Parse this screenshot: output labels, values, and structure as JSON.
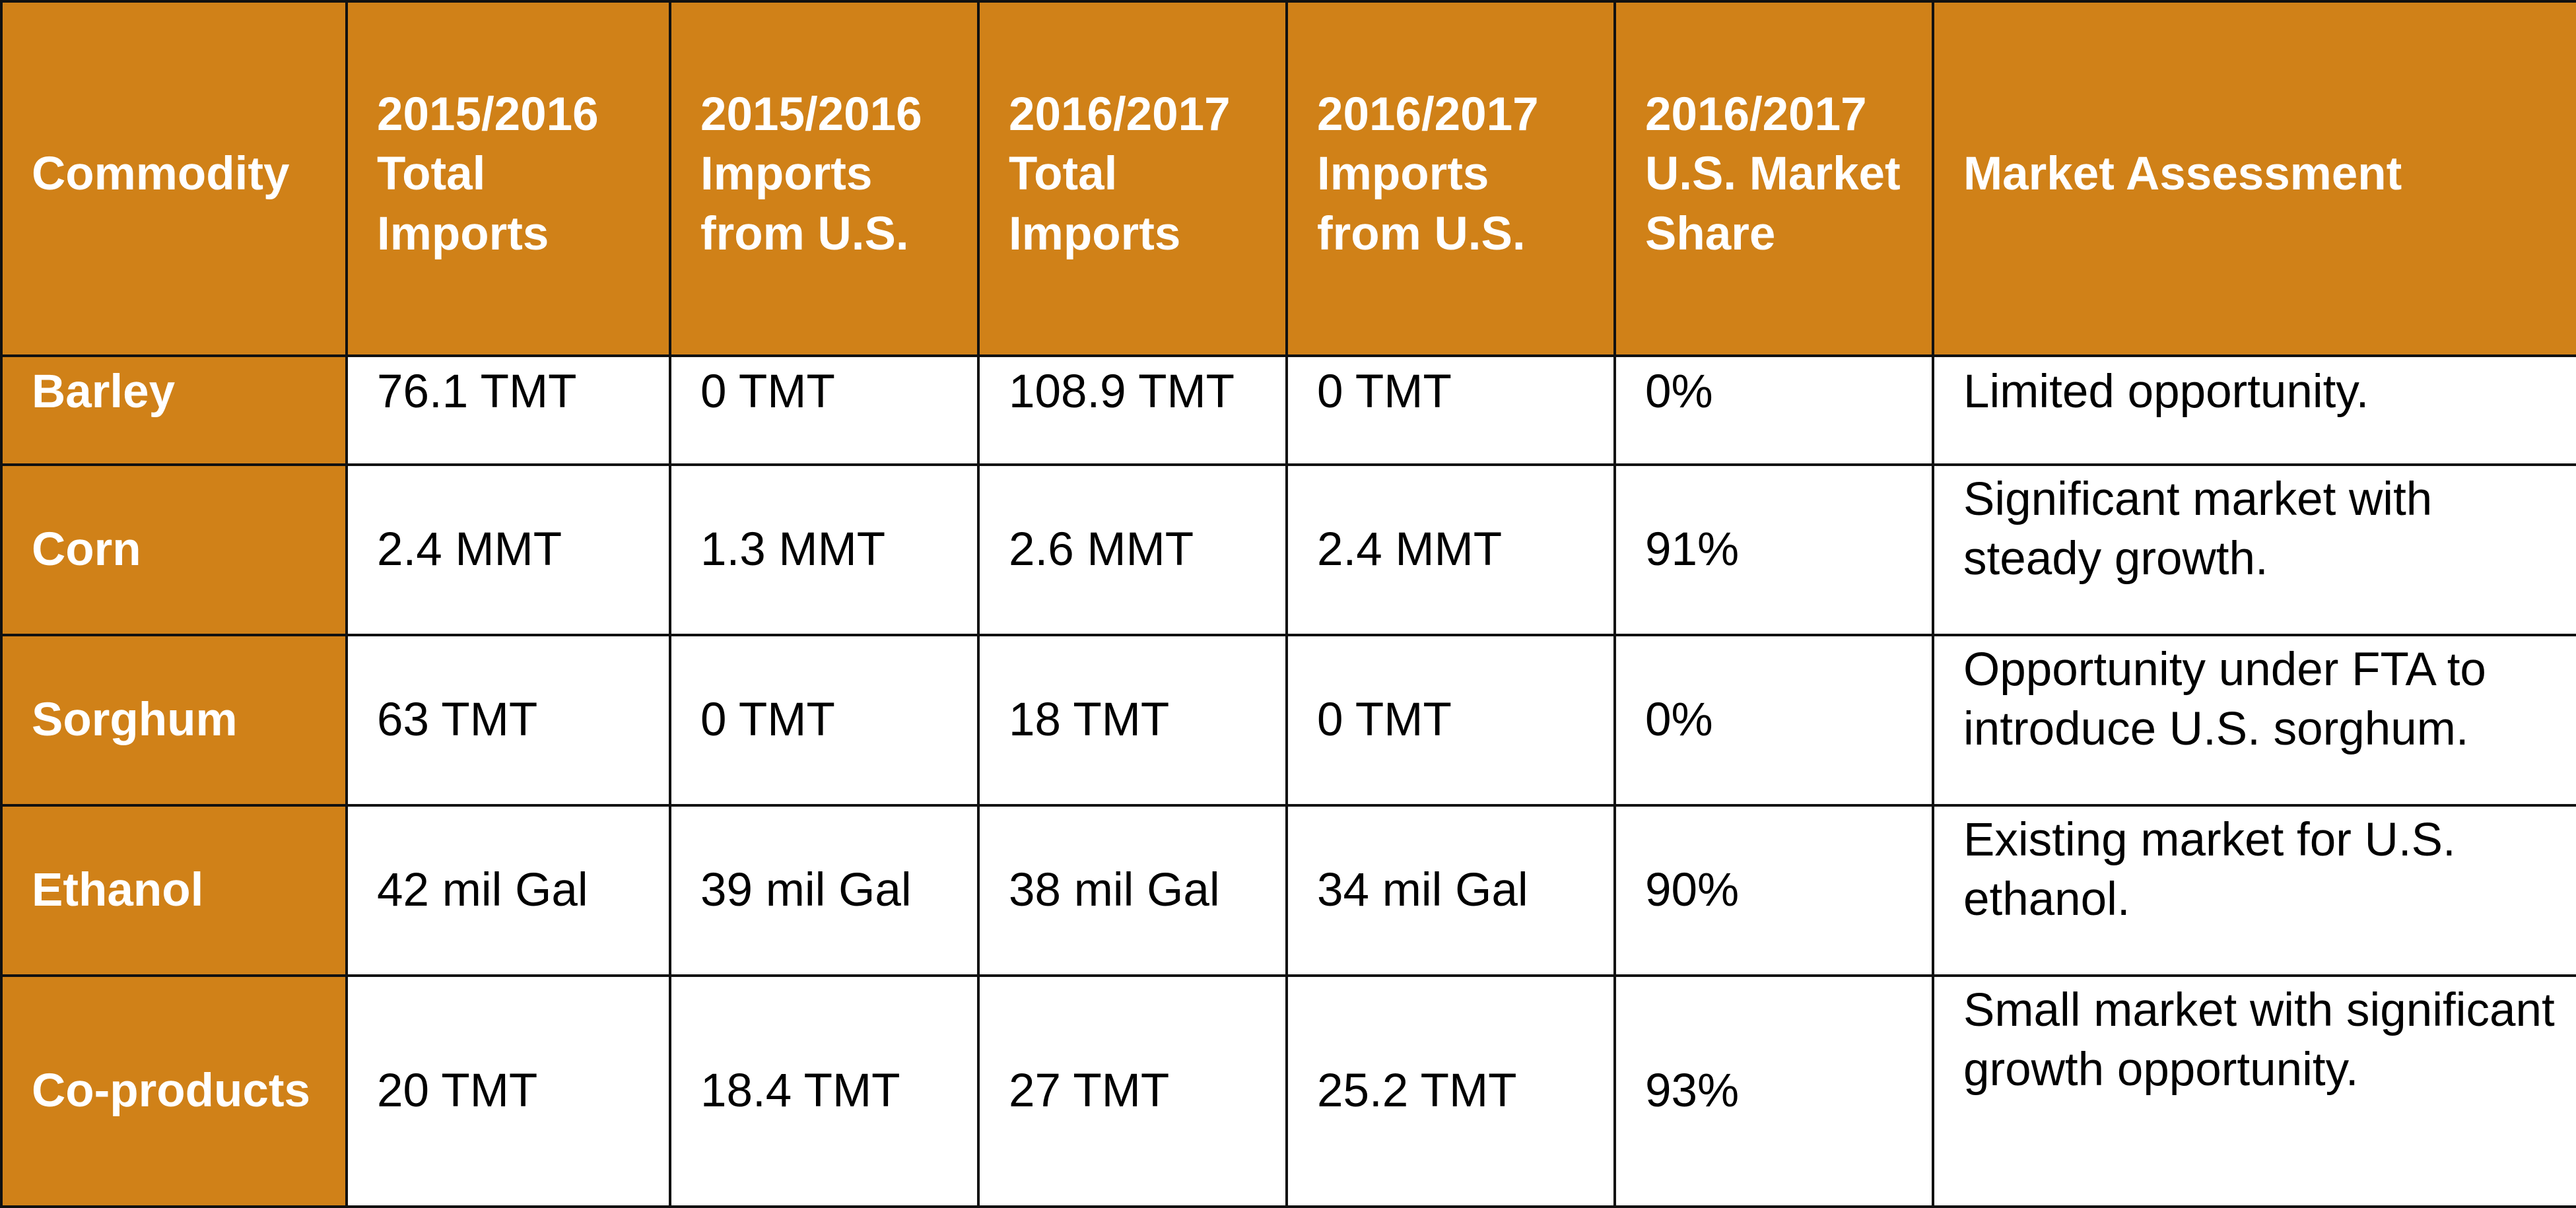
{
  "table": {
    "headers": [
      "Commodity",
      "2015/2016 Total Imports",
      "2015/2016 Imports from U.S.",
      "2016/2017 Total Imports",
      "2016/2017 Imports from U.S.",
      "2016/2017 U.S. Market Share",
      "Market Assessment"
    ],
    "rows": [
      {
        "commodity": "Barley",
        "total_2015_2016": "76.1 TMT",
        "us_2015_2016": "0 TMT",
        "total_2016_2017": "108.9 TMT",
        "us_2016_2017": "0 TMT",
        "share_2016_2017": "0%",
        "assessment": "Limited opportunity."
      },
      {
        "commodity": "Corn",
        "total_2015_2016": "2.4 MMT",
        "us_2015_2016": "1.3 MMT",
        "total_2016_2017": "2.6 MMT",
        "us_2016_2017": "2.4 MMT",
        "share_2016_2017": "91%",
        "assessment": "Significant market with steady growth."
      },
      {
        "commodity": "Sorghum",
        "total_2015_2016": "63 TMT",
        "us_2015_2016": "0 TMT",
        "total_2016_2017": "18 TMT",
        "us_2016_2017": "0 TMT",
        "share_2016_2017": "0%",
        "assessment": "Opportunity under FTA to introduce U.S. sorghum."
      },
      {
        "commodity": "Ethanol",
        "total_2015_2016": "42 mil Gal",
        "us_2015_2016": "39 mil Gal",
        "total_2016_2017": "38 mil Gal",
        "us_2016_2017": "34 mil Gal",
        "share_2016_2017": "90%",
        "assessment": "Existing market for U.S. ethanol."
      },
      {
        "commodity": "Co-products",
        "total_2015_2016": "20 TMT",
        "us_2015_2016": "18.4 TMT",
        "total_2016_2017": "27 TMT",
        "us_2016_2017": "25.2 TMT",
        "share_2016_2017": "93%",
        "assessment": "Small market with significant growth opportunity."
      }
    ]
  },
  "colors": {
    "header_bg": "#d08118",
    "header_text": "#ffffff",
    "cell_bg": "#ffffff",
    "cell_text": "#000000",
    "border": "#111111"
  }
}
